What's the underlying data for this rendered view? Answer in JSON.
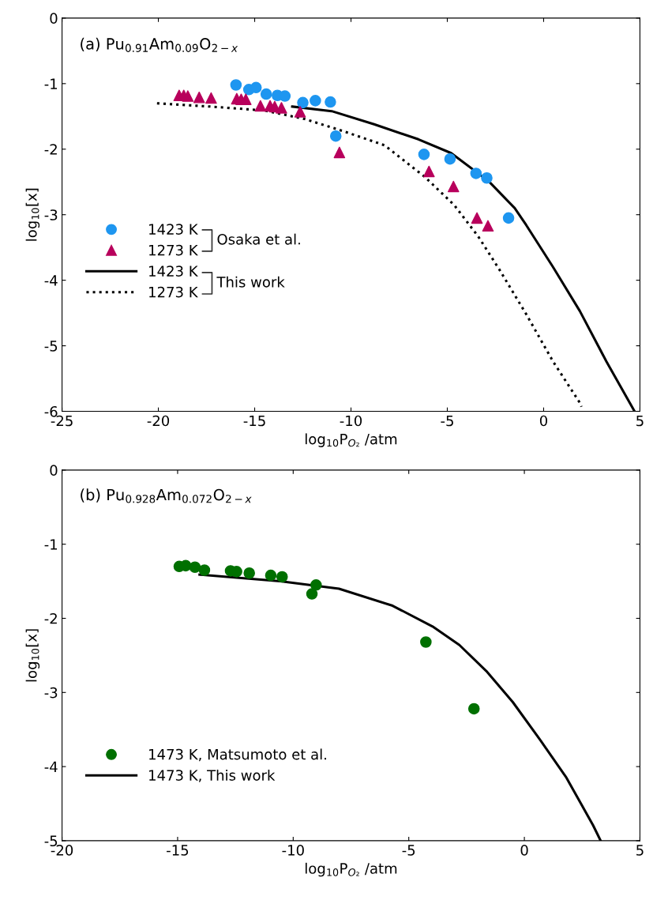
{
  "chart_data": [
    {
      "type": "scatter",
      "title": "(a) Pu$_{0.91}$Am$_{0.09}$O$_{2−x}$",
      "xlabel": "log$_{10}$P$_{O₂}$ /atm",
      "ylabel": "log$_{10}$[x]",
      "xlim": [
        -25,
        5
      ],
      "xticks": [
        -25,
        -20,
        -15,
        -10,
        -5,
        0,
        5
      ],
      "ylim": [
        -6,
        0
      ],
      "yticks": [
        -6,
        -5,
        -4,
        -3,
        -2,
        -1,
        0
      ],
      "grid": false,
      "legend": "left",
      "annotations": [
        "Osaka et al.",
        "This work"
      ],
      "series": [
        {
          "name": "1423 K",
          "marker": "circle",
          "color": "#1e96f0",
          "x": [
            -15.97,
            -15.3,
            -14.93,
            -14.4,
            -13.82,
            -13.43,
            -12.5,
            -11.85,
            -11.07,
            -10.79,
            -6.21,
            -4.86,
            -3.51,
            -2.95,
            -1.82
          ],
          "values": [
            -1.02,
            -1.09,
            -1.06,
            -1.16,
            -1.18,
            -1.19,
            -1.29,
            -1.26,
            -1.28,
            -1.8,
            -2.08,
            -2.15,
            -2.37,
            -2.44,
            -3.05
          ]
        },
        {
          "name": "1273 K",
          "marker": "triangle",
          "color": "#b8005c",
          "x": [
            -18.92,
            -18.68,
            -18.47,
            -17.88,
            -17.26,
            -15.93,
            -15.7,
            -15.46,
            -14.7,
            -14.2,
            -13.96,
            -13.61,
            -12.64,
            -10.6,
            -5.95,
            -4.68,
            -3.46,
            -2.89
          ],
          "values": [
            -1.18,
            -1.18,
            -1.19,
            -1.21,
            -1.22,
            -1.23,
            -1.24,
            -1.24,
            -1.34,
            -1.34,
            -1.35,
            -1.37,
            -1.43,
            -2.05,
            -2.34,
            -2.57,
            -3.05,
            -3.17
          ]
        },
        {
          "name": "1423 K",
          "type": "line",
          "line_style": "solid",
          "color": "#000000",
          "x": [
            -13.05,
            -11,
            -8.8,
            -6.5,
            -4.8,
            -2.85,
            -1.5,
            -0.9,
            0.49,
            1.88,
            3.26,
            4.72
          ],
          "values": [
            -1.35,
            -1.42,
            -1.62,
            -1.85,
            -2.06,
            -2.49,
            -2.9,
            -3.16,
            -3.8,
            -4.47,
            -5.24,
            -6
          ]
        },
        {
          "name": "1273 K",
          "type": "line",
          "line_style": "dotted",
          "color": "#000000",
          "x": [
            -20.07,
            -17.3,
            -14.5,
            -12.4,
            -10.35,
            -8.26,
            -6.18,
            -4.65,
            -3.4,
            -2.29,
            -0.9,
            0.49,
            1.88,
            1.96
          ],
          "values": [
            -1.3,
            -1.35,
            -1.41,
            -1.54,
            -1.73,
            -1.94,
            -2.42,
            -2.85,
            -3.33,
            -3.84,
            -4.52,
            -5.24,
            -5.87,
            -5.93
          ]
        }
      ]
    },
    {
      "type": "scatter",
      "title": "(b) Pu$_{0.928}$Am$_{0.072}$O$_{2−x}$",
      "xlabel": "log$_{10}$P$_{O₂}$ /atm",
      "ylabel": "log$_{10}$[x]",
      "xlim": [
        -20,
        5
      ],
      "xticks": [
        -20,
        -15,
        -10,
        -5,
        0,
        5
      ],
      "ylim": [
        -5,
        0
      ],
      "yticks": [
        -5,
        -4,
        -3,
        -2,
        -1,
        0
      ],
      "grid": false,
      "legend": "bottom left",
      "series": [
        {
          "name": "1473 K, Matsumoto et al.",
          "marker": "circle",
          "color": "#007000",
          "x": [
            -14.93,
            -14.65,
            -14.25,
            -13.84,
            -12.71,
            -12.45,
            -11.9,
            -10.97,
            -10.48,
            -9.01,
            -9.19,
            -4.26,
            -2.18
          ],
          "values": [
            -1.3,
            -1.29,
            -1.31,
            -1.35,
            -1.36,
            -1.37,
            -1.39,
            -1.42,
            -1.44,
            -1.55,
            -1.67,
            -2.32,
            -3.22
          ]
        },
        {
          "name": "1473 K, This work",
          "type": "line",
          "line_style": "solid",
          "color": "#000000",
          "x": [
            -14.05,
            -10.57,
            -8.02,
            -5.7,
            -3.97,
            -2.81,
            -1.65,
            -0.5,
            0.66,
            1.82,
            2.97,
            3.3
          ],
          "values": [
            -1.41,
            -1.5,
            -1.6,
            -1.83,
            -2.11,
            -2.36,
            -2.71,
            -3.13,
            -3.63,
            -4.15,
            -4.79,
            -5.0
          ]
        }
      ]
    }
  ]
}
